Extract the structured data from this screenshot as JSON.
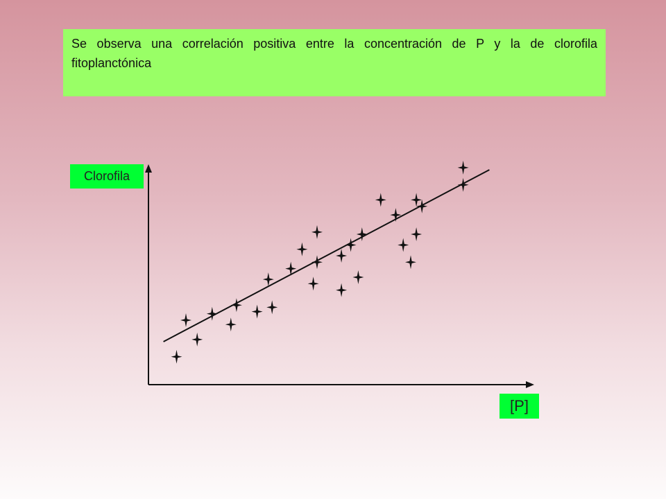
{
  "note": {
    "text": "Se observa una correlación positiva entre la concentración de P y la de clorofila fitoplanctónica"
  },
  "chart_data": {
    "type": "scatter",
    "title": "",
    "xlabel": "[P]",
    "ylabel": "Clorofila",
    "xlim": [
      0,
      100
    ],
    "ylim": [
      0,
      100
    ],
    "grid": false,
    "ticks": false,
    "points": [
      [
        7.5,
        13
      ],
      [
        10,
        30
      ],
      [
        13,
        21
      ],
      [
        17,
        33
      ],
      [
        22,
        28
      ],
      [
        23.5,
        37
      ],
      [
        29,
        34
      ],
      [
        32,
        49
      ],
      [
        33,
        36
      ],
      [
        38,
        54
      ],
      [
        41,
        63
      ],
      [
        44,
        47
      ],
      [
        45,
        71
      ],
      [
        45,
        57
      ],
      [
        51.5,
        44
      ],
      [
        51.5,
        60
      ],
      [
        54,
        65
      ],
      [
        56,
        50
      ],
      [
        57,
        70
      ],
      [
        62,
        86
      ],
      [
        66,
        79
      ],
      [
        68,
        65
      ],
      [
        70,
        57
      ],
      [
        71.5,
        86
      ],
      [
        71.5,
        70
      ],
      [
        73,
        83
      ],
      [
        84,
        93
      ],
      [
        84,
        101
      ]
    ],
    "trendline": {
      "x": [
        4,
        91
      ],
      "y": [
        20,
        100
      ]
    },
    "colors": {
      "marker": "#111111",
      "axis": "#111111"
    }
  }
}
